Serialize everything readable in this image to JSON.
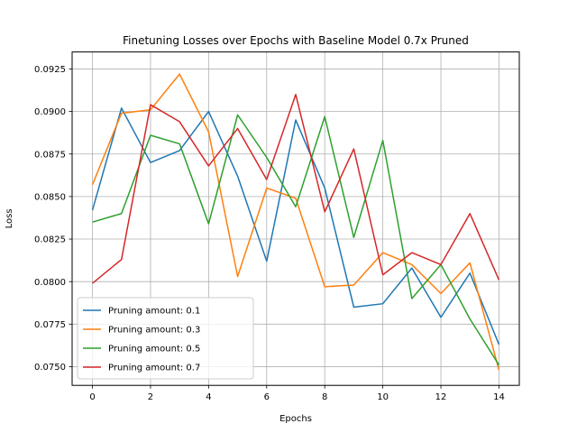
{
  "chart_data": {
    "type": "line",
    "title": "Finetuning Losses over Epochs with Baseline Model 0.7x Pruned",
    "xlabel": "Epochs",
    "ylabel": "Loss",
    "xlim": [
      -0.7,
      14.7
    ],
    "ylim": [
      0.0739,
      0.0935
    ],
    "x_ticks": [
      0,
      2,
      4,
      6,
      8,
      10,
      12,
      14
    ],
    "y_ticks": [
      0.075,
      0.0775,
      0.08,
      0.0825,
      0.085,
      0.0875,
      0.09,
      0.0925
    ],
    "y_tick_labels": [
      "0.0750",
      "0.0775",
      "0.0800",
      "0.0825",
      "0.0850",
      "0.0875",
      "0.0900",
      "0.0925"
    ],
    "grid": true,
    "legend_position": "lower-left",
    "x": [
      0,
      1,
      2,
      3,
      4,
      5,
      6,
      7,
      8,
      9,
      10,
      11,
      12,
      13,
      14
    ],
    "series": [
      {
        "name": "Pruning amount: 0.1",
        "color": "#1f77b4",
        "values": [
          0.0842,
          0.0902,
          0.087,
          0.0877,
          0.09,
          0.0862,
          0.0812,
          0.0895,
          0.0855,
          0.0785,
          0.0787,
          0.0808,
          0.0779,
          0.0805,
          0.0763
        ]
      },
      {
        "name": "Pruning amount: 0.3",
        "color": "#ff7f0e",
        "values": [
          0.0857,
          0.0899,
          0.0901,
          0.0922,
          0.0888,
          0.0803,
          0.0855,
          0.0849,
          0.0797,
          0.0798,
          0.0817,
          0.081,
          0.0793,
          0.0811,
          0.0748
        ]
      },
      {
        "name": "Pruning amount: 0.5",
        "color": "#2ca02c",
        "values": [
          0.0835,
          0.084,
          0.0886,
          0.0881,
          0.0834,
          0.0898,
          0.0873,
          0.0844,
          0.0897,
          0.0826,
          0.0883,
          0.079,
          0.081,
          0.0778,
          0.0751
        ]
      },
      {
        "name": "Pruning amount: 0.7",
        "color": "#d62728",
        "values": [
          0.0799,
          0.0813,
          0.0904,
          0.0894,
          0.0868,
          0.089,
          0.086,
          0.091,
          0.0841,
          0.0878,
          0.0804,
          0.0817,
          0.081,
          0.084,
          0.0801
        ]
      }
    ]
  }
}
